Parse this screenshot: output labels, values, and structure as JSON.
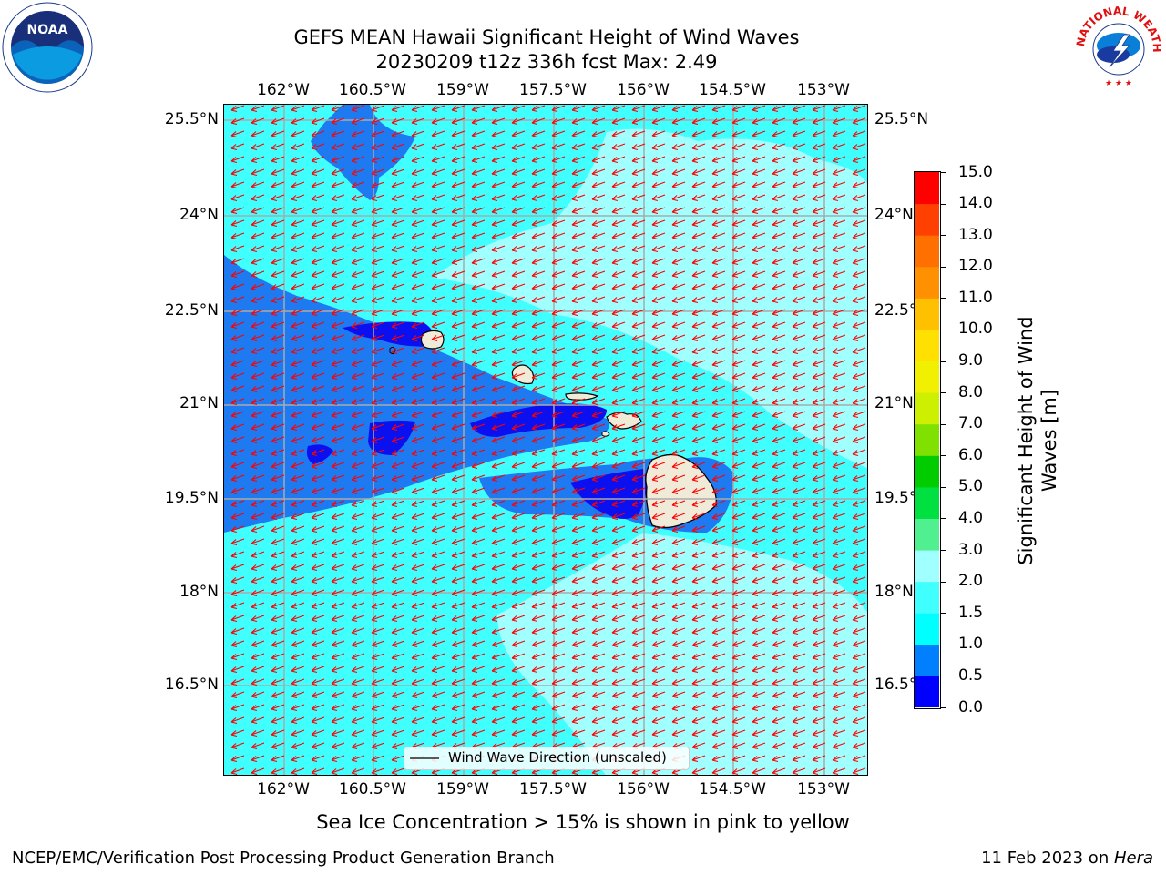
{
  "header": {
    "title_line1": "GEFS MEAN Hawaii Significant Height of Wind Waves",
    "title_line2": "20230209 t12z 336h fcst   Max: 2.49"
  },
  "logos": {
    "noaa_text": "NOAA",
    "nws_text": "NATIONAL WEATHER SERVICE"
  },
  "map": {
    "lon_labels": [
      "162°W",
      "160.5°W",
      "159°W",
      "157.5°W",
      "156°W",
      "154.5°W",
      "153°W"
    ],
    "lat_labels": [
      "25.5°N",
      "24°N",
      "22.5°N",
      "21°N",
      "19.5°N",
      "18°N",
      "16.5°N"
    ],
    "legend_label": "Wind Wave Direction (unscaled)",
    "arrow_color": "#ff0000",
    "land_color": "#efebd8"
  },
  "colorbar": {
    "label_line1": "Significant Height of Wind",
    "label_line2": "Waves [m]",
    "ticks": [
      "0.0",
      "0.5",
      "1.0",
      "1.5",
      "2.0",
      "3.0",
      "4.0",
      "5.0",
      "6.0",
      "7.0",
      "8.0",
      "9.0",
      "10.0",
      "11.0",
      "12.0",
      "13.0",
      "14.0",
      "15.0"
    ],
    "colors": [
      "#0000ff",
      "#0080ff",
      "#00ffff",
      "#40ffff",
      "#a0ffff",
      "#50f090",
      "#00e040",
      "#00cc00",
      "#80e000",
      "#ccf000",
      "#f0f000",
      "#ffe000",
      "#ffc000",
      "#ff9000",
      "#ff7000",
      "#ff4000",
      "#ff0000"
    ]
  },
  "caption": "Sea Ice Concentration > 15% is shown in pink to yellow",
  "footer": {
    "left": "NCEP/EMC/Verification Post Processing Product Generation Branch",
    "right_prefix": "11 Feb 2023 on ",
    "right_host": "Hera"
  }
}
